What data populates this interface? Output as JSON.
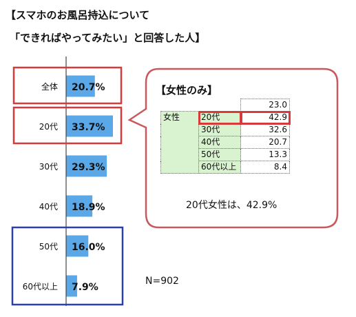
{
  "title_line1": "【スマホのお風呂持込について",
  "title_line2": "「できればやってみたい」と回答した人】",
  "colors": {
    "bar": "#5aa8e8",
    "red_box": "#d63a3a",
    "blue_box": "#2a3fb0",
    "callout_border": "#c9585b",
    "table_fill": "#d9f2d0"
  },
  "chart_data": {
    "type": "bar",
    "orientation": "horizontal",
    "categories": [
      "全体",
      "20代",
      "30代",
      "40代",
      "50代",
      "60代以上"
    ],
    "values": [
      20.7,
      33.7,
      29.3,
      18.9,
      16.0,
      7.9
    ],
    "value_labels": [
      "20.7%",
      "33.7%",
      "29.3%",
      "18.9%",
      "16.0%",
      "7.9%"
    ],
    "unit": "%",
    "highlight_red": [
      "全体",
      "20代"
    ],
    "highlight_blue": [
      "50代",
      "60代以上"
    ]
  },
  "sample_size": "N=902",
  "inset": {
    "title": "【女性のみ】",
    "group_label": "女性",
    "top_value": "23.0",
    "rows": [
      {
        "label": "20代",
        "value": "42.9",
        "highlight": true
      },
      {
        "label": "30代",
        "value": "32.6",
        "highlight": false
      },
      {
        "label": "40代",
        "value": "20.7",
        "highlight": false
      },
      {
        "label": "50代",
        "value": "13.3",
        "highlight": false
      },
      {
        "label": "60代以上",
        "value": "8.4",
        "highlight": false
      }
    ],
    "summary": "20代女性は、42.9%"
  }
}
